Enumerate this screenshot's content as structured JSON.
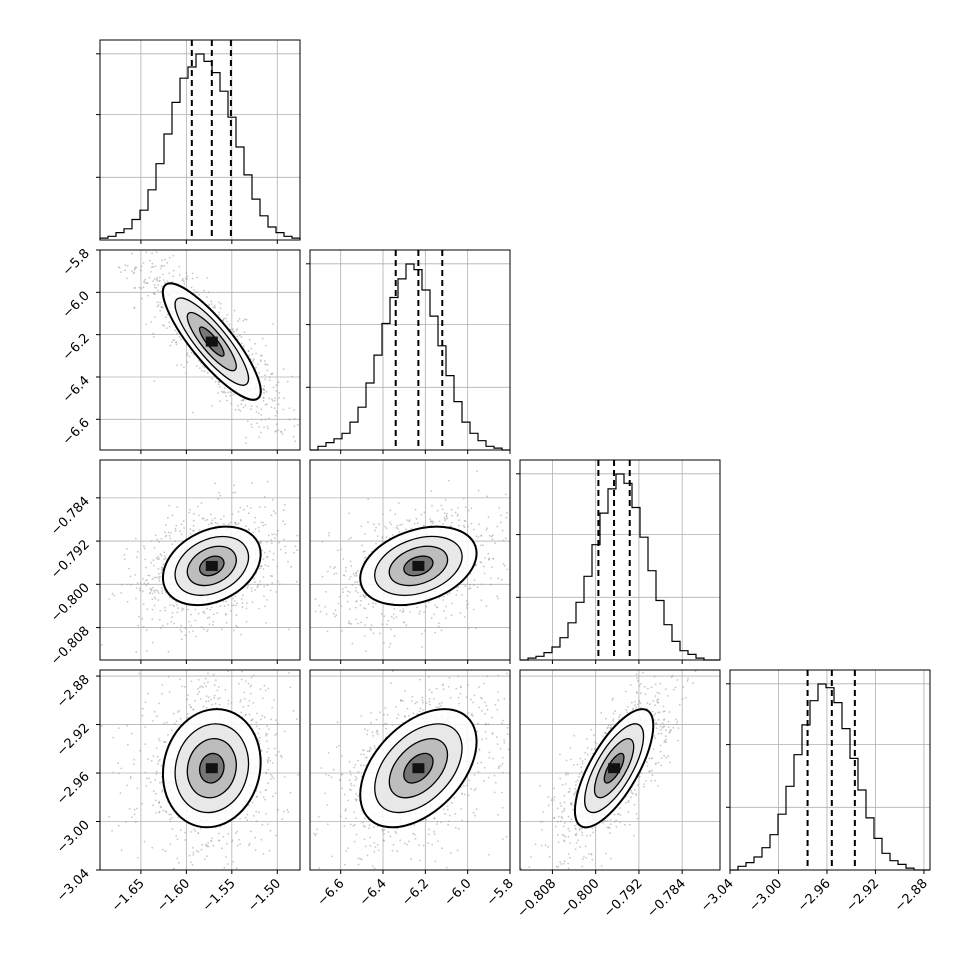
{
  "chart_data": {
    "type": "corner",
    "parameters": [
      {
        "median": -1.572,
        "q16": -1.594,
        "q84": -1.551,
        "range": [
          -1.695,
          -1.475
        ],
        "ticks": [
          -1.65,
          -1.6,
          -1.55,
          -1.5
        ],
        "tick_labels": [
          "−1.65",
          "−1.60",
          "−1.55",
          "−1.50"
        ],
        "hist": [
          0.01,
          0.02,
          0.04,
          0.06,
          0.11,
          0.16,
          0.27,
          0.41,
          0.57,
          0.74,
          0.87,
          0.93,
          1.0,
          0.96,
          0.9,
          0.8,
          0.66,
          0.5,
          0.35,
          0.22,
          0.13,
          0.07,
          0.04,
          0.02,
          0.01
        ]
      },
      {
        "median": -6.233,
        "q16": -6.34,
        "q84": -6.12,
        "range": [
          -6.745,
          -5.8
        ],
        "ticks": [
          -6.6,
          -6.4,
          -6.2,
          -6.0,
          -5.8
        ],
        "tick_labels": [
          "−6.6",
          "−6.4",
          "−6.2",
          "−6.0",
          "−5.8"
        ],
        "hist": [
          0.0,
          0.02,
          0.04,
          0.06,
          0.09,
          0.15,
          0.23,
          0.36,
          0.51,
          0.68,
          0.82,
          0.92,
          1.0,
          0.97,
          0.86,
          0.72,
          0.56,
          0.4,
          0.26,
          0.15,
          0.09,
          0.05,
          0.02,
          0.01,
          0.0
        ]
      },
      {
        "median": -0.7966,
        "q16": -0.7995,
        "q84": -0.7937,
        "range": [
          -0.814,
          -0.777
        ],
        "ticks": [
          -0.808,
          -0.8,
          -0.792,
          -0.784
        ],
        "tick_labels": [
          "−0.808",
          "−0.800",
          "−0.792",
          "−0.784"
        ],
        "hist": [
          0.0,
          0.01,
          0.02,
          0.04,
          0.07,
          0.12,
          0.2,
          0.31,
          0.45,
          0.62,
          0.79,
          0.92,
          1.0,
          0.95,
          0.82,
          0.66,
          0.48,
          0.32,
          0.19,
          0.1,
          0.05,
          0.03,
          0.01,
          0.0,
          0.0
        ]
      },
      {
        "median": -2.956,
        "q16": -2.976,
        "q84": -2.937,
        "range": [
          -3.04,
          -2.875
        ],
        "ticks": [
          -3.04,
          -3.0,
          -2.96,
          -2.92,
          -2.88
        ],
        "tick_labels": [
          "−3.04",
          "−3.00",
          "−2.96",
          "−2.92",
          "−2.88"
        ],
        "hist": [
          0.0,
          0.02,
          0.04,
          0.07,
          0.12,
          0.19,
          0.3,
          0.45,
          0.62,
          0.78,
          0.91,
          1.0,
          0.98,
          0.9,
          0.76,
          0.6,
          0.43,
          0.28,
          0.17,
          0.09,
          0.05,
          0.03,
          0.01,
          0.0,
          0.0
        ]
      }
    ],
    "correlations": [
      [
        1.0,
        -0.85,
        0.3,
        0.1
      ],
      [
        -0.85,
        1.0,
        0.32,
        0.45
      ],
      [
        0.3,
        0.32,
        1.0,
        0.72
      ],
      [
        0.1,
        0.45,
        0.72,
        1.0
      ]
    ],
    "contour_levels_sigma": [
      0.5,
      1.0,
      1.5,
      2.0
    ],
    "quantiles": [
      0.16,
      0.5,
      0.84
    ],
    "grid": true,
    "colors": {
      "line": "#000000",
      "grid": "#b0b0b0",
      "points": "#9a9a9a"
    }
  }
}
